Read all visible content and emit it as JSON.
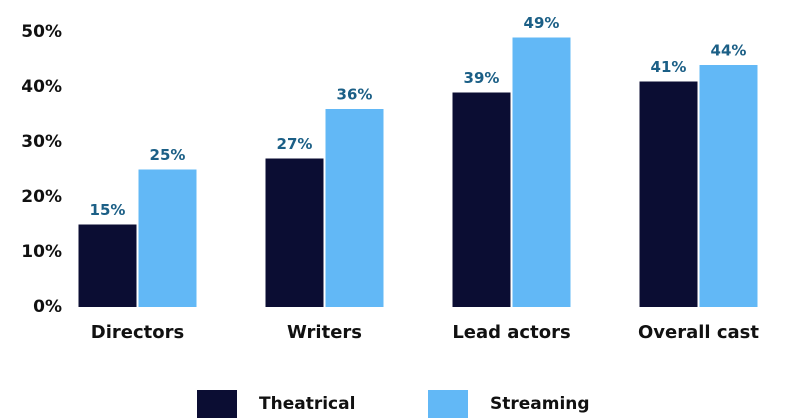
{
  "chart_data": {
    "type": "bar",
    "categories": [
      "Directors",
      "Writers",
      "Lead actors",
      "Overall cast"
    ],
    "series": [
      {
        "name": "Theatrical",
        "color": "#0b0d33",
        "values": [
          15,
          27,
          39,
          41
        ],
        "value_labels": [
          "15%",
          "27%",
          "39%",
          "41%"
        ]
      },
      {
        "name": "Streaming",
        "color": "#62b8f6",
        "values": [
          25,
          36,
          49,
          44
        ],
        "value_labels": [
          "25%",
          "36%",
          "49%",
          "44%"
        ]
      }
    ],
    "ylim": [
      0,
      50
    ],
    "yticks": [
      {
        "value": 0,
        "label": "0%"
      },
      {
        "value": 10,
        "label": "10%"
      },
      {
        "value": 20,
        "label": "20%"
      },
      {
        "value": 30,
        "label": "30%"
      },
      {
        "value": 40,
        "label": "40%"
      },
      {
        "value": 50,
        "label": "50%"
      }
    ],
    "grid": false,
    "legend": "bottom"
  }
}
